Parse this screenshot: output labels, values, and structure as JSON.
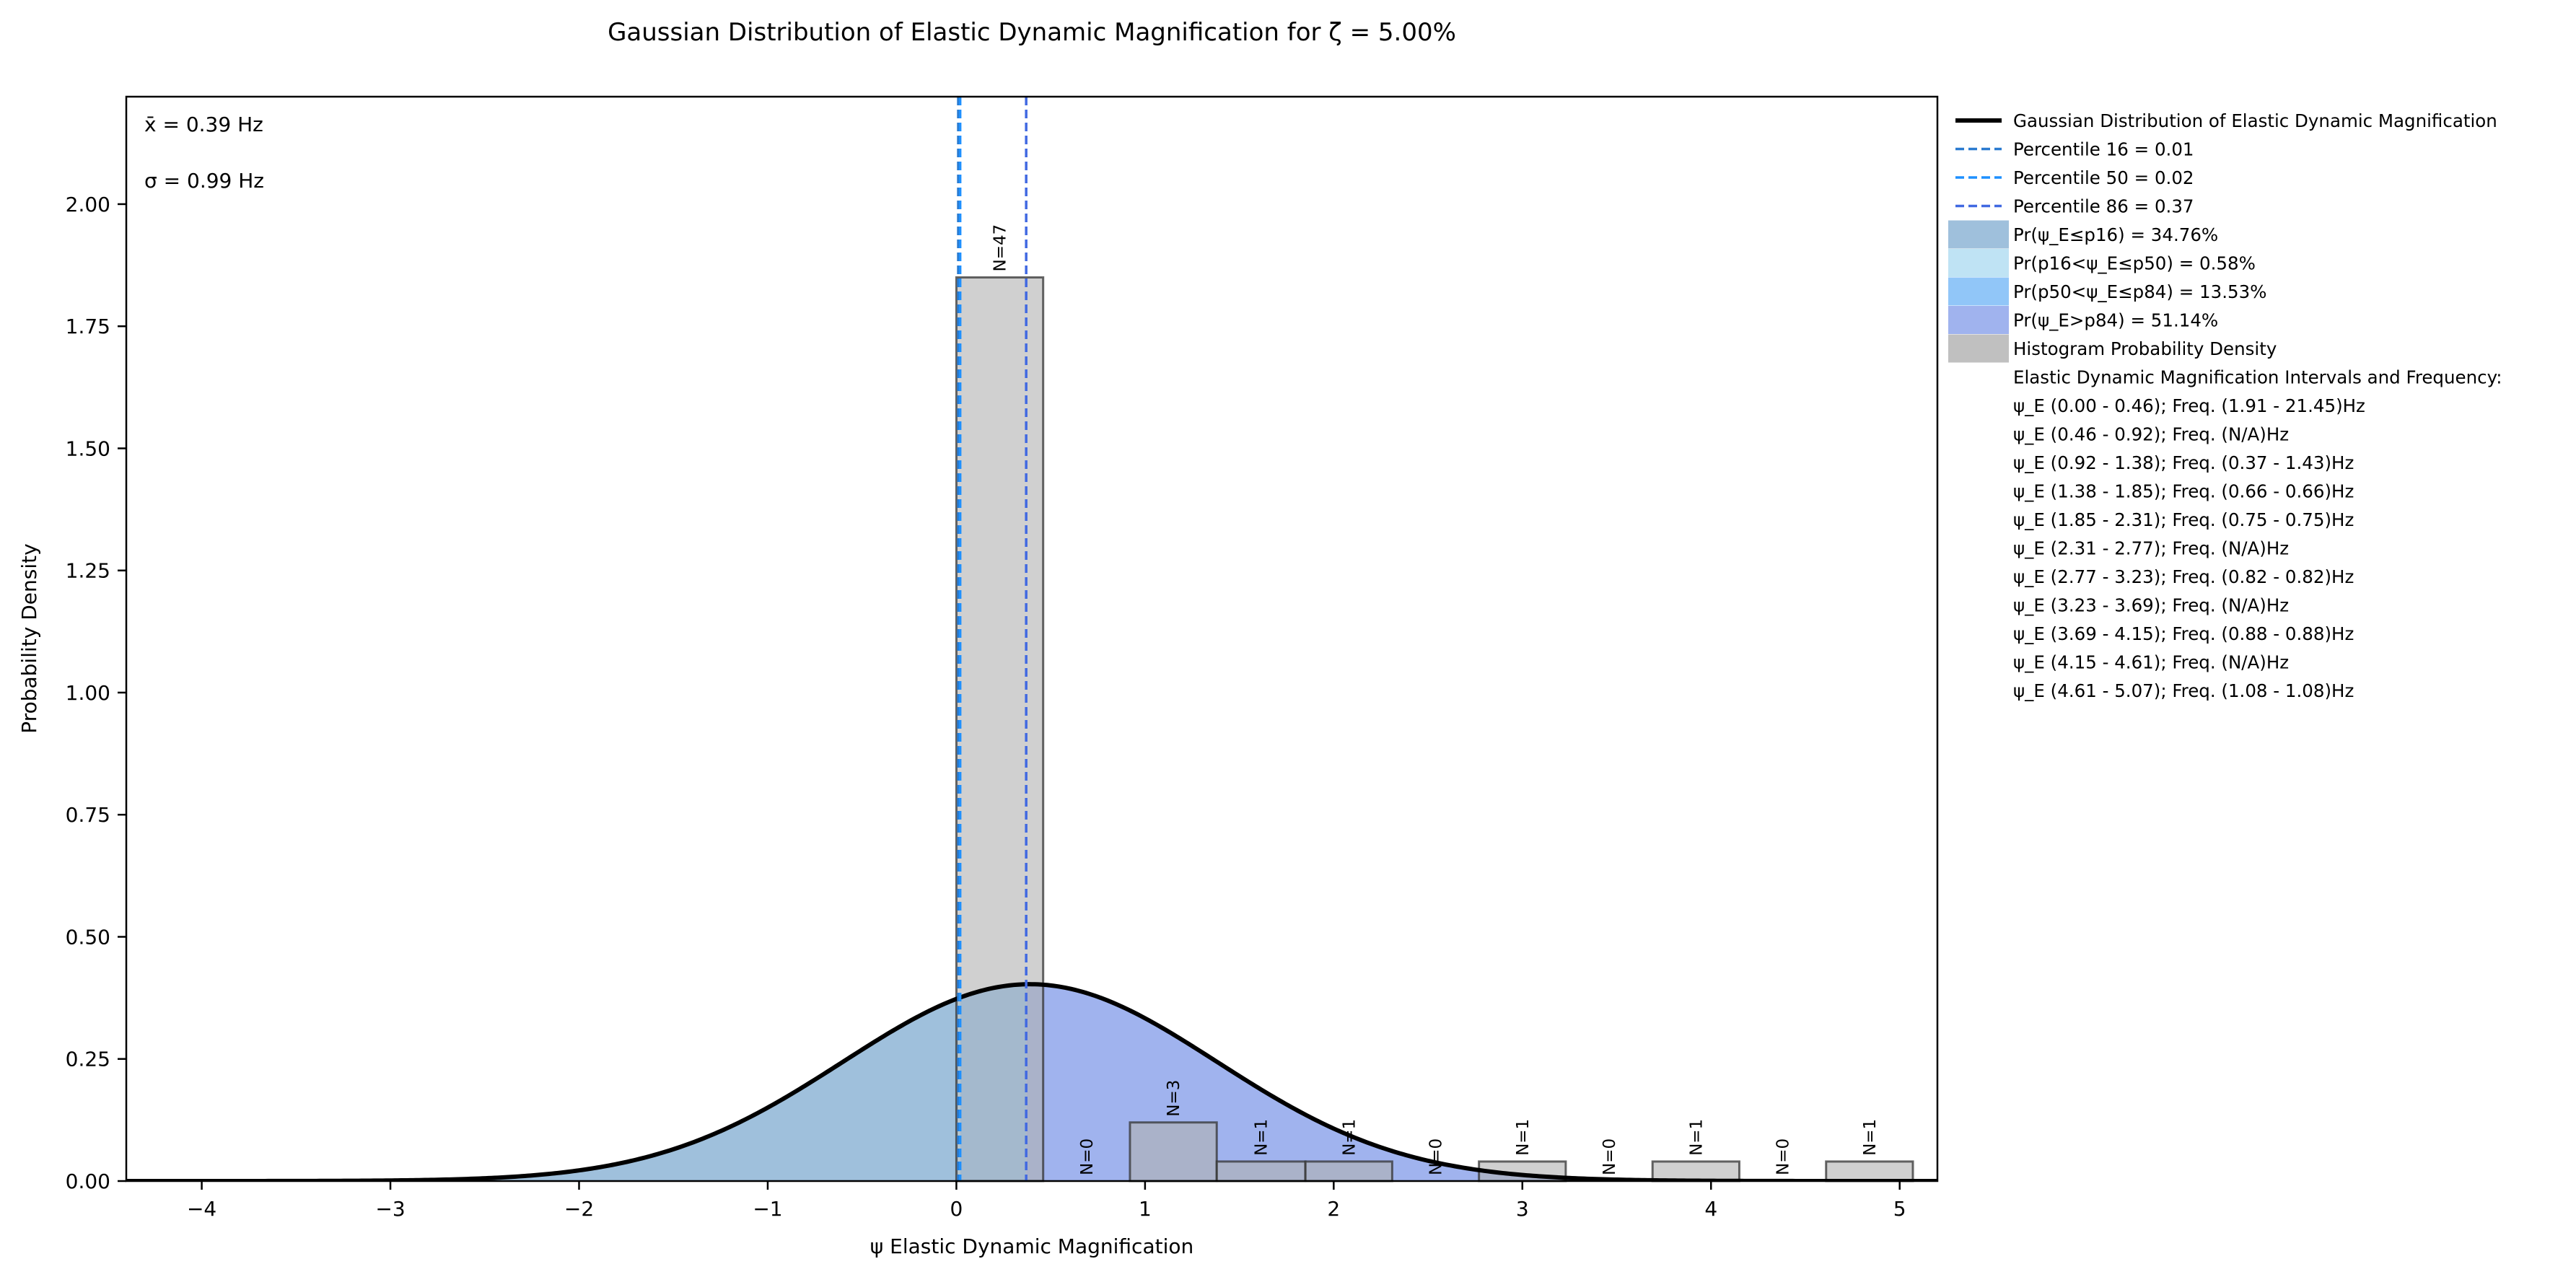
{
  "chart_data": {
    "type": "bar",
    "title": "Gaussian Distribution of Elastic Dynamic Magnification for ζ = 5.00%",
    "xlabel": "ψ Elastic Dynamic Magnification",
    "ylabel": "Probability Density",
    "xlim": [
      -4.4,
      5.2
    ],
    "ylim": [
      0,
      2.22
    ],
    "xticks": [
      -4,
      -3,
      -2,
      -1,
      0,
      1,
      2,
      3,
      4,
      5
    ],
    "yticks": [
      "0.00",
      "0.25",
      "0.50",
      "0.75",
      "1.00",
      "1.25",
      "1.50",
      "1.75",
      "2.00"
    ],
    "stats": {
      "mean": "x̄ = 0.39 Hz",
      "std": "σ = 0.99 Hz"
    },
    "gaussian": {
      "mean": 0.39,
      "std": 0.99
    },
    "percentiles": [
      {
        "name": "Percentile 16 = 0.01",
        "value": 0.01,
        "color": "#2b7bd0"
      },
      {
        "name": "Percentile 50 = 0.02",
        "value": 0.02,
        "color": "#1e90ff"
      },
      {
        "name": "Percentile 86 = 0.37",
        "value": 0.37,
        "color": "#4169e1"
      }
    ],
    "regions": [
      {
        "name": "Pr(ψ_E≤p16) = 34.76%",
        "color": "#9fc0dc"
      },
      {
        "name": "Pr(p16<ψ_E≤p50) = 0.58%",
        "color": "#bfe3f4"
      },
      {
        "name": "Pr(p50<ψ_E≤p84) = 13.53%",
        "color": "#91c6f8"
      },
      {
        "name": "Pr(ψ_E>p84) = 51.14%",
        "color": "#a0b3ee"
      }
    ],
    "histogram": {
      "name": "Histogram Probability Density",
      "color": "#b0b0b0",
      "bins": [
        {
          "x0": 0.0,
          "x1": 0.46,
          "density": 1.85,
          "label": "N=47"
        },
        {
          "x0": 0.46,
          "x1": 0.92,
          "density": 0,
          "label": "N=0"
        },
        {
          "x0": 0.92,
          "x1": 1.38,
          "density": 0.12,
          "label": "N=3"
        },
        {
          "x0": 1.38,
          "x1": 1.85,
          "density": 0.04,
          "label": "N=1"
        },
        {
          "x0": 1.85,
          "x1": 2.31,
          "density": 0.04,
          "label": "N=1"
        },
        {
          "x0": 2.31,
          "x1": 2.77,
          "density": 0,
          "label": "N=0"
        },
        {
          "x0": 2.77,
          "x1": 3.23,
          "density": 0.04,
          "label": "N=1"
        },
        {
          "x0": 3.23,
          "x1": 3.69,
          "density": 0,
          "label": "N=0"
        },
        {
          "x0": 3.69,
          "x1": 4.15,
          "density": 0.04,
          "label": "N=1"
        },
        {
          "x0": 4.15,
          "x1": 4.61,
          "density": 0,
          "label": "N=0"
        },
        {
          "x0": 4.61,
          "x1": 5.07,
          "density": 0.04,
          "label": "N=1"
        }
      ]
    },
    "legend": {
      "placement": "outside-right",
      "curve_label": "Gaussian Distribution of Elastic Dynamic Magnification",
      "intervals_header": "Elastic Dynamic Magnification Intervals and Frequency:",
      "intervals": [
        "ψ_E (0.00 - 0.46); Freq. (1.91 - 21.45)Hz",
        "ψ_E (0.46 - 0.92); Freq. (N/A)Hz",
        "ψ_E (0.92 - 1.38); Freq. (0.37 - 1.43)Hz",
        "ψ_E (1.38 - 1.85); Freq. (0.66 - 0.66)Hz",
        "ψ_E (1.85 - 2.31); Freq. (0.75 - 0.75)Hz",
        "ψ_E (2.31 - 2.77); Freq. (N/A)Hz",
        "ψ_E (2.77 - 3.23); Freq. (0.82 - 0.82)Hz",
        "ψ_E (3.23 - 3.69); Freq. (N/A)Hz",
        "ψ_E (3.69 - 4.15); Freq. (0.88 - 0.88)Hz",
        "ψ_E (4.15 - 4.61); Freq. (N/A)Hz",
        "ψ_E (4.61 - 5.07); Freq. (1.08 - 1.08)Hz"
      ]
    },
    "grid": false
  }
}
